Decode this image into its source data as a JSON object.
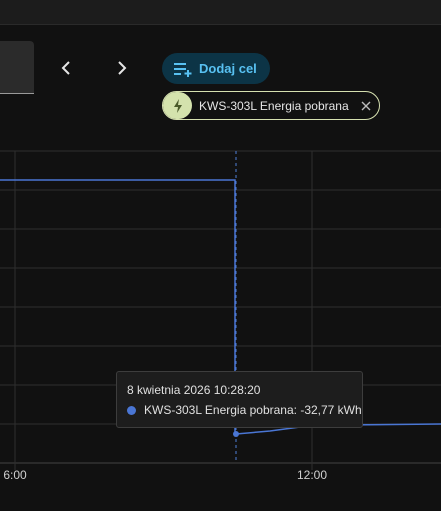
{
  "toolbar": {
    "add_target": "Dodaj cel",
    "chip_label": "KWS-303L Energia pobrana"
  },
  "chart": {
    "x_tick_labels": [
      "6:00",
      "12:00"
    ]
  },
  "tooltip": {
    "title": "8 kwietnia 2026 10:28:20",
    "line": "KWS-303L Energia pobrana: -32,77 kWh"
  }
}
